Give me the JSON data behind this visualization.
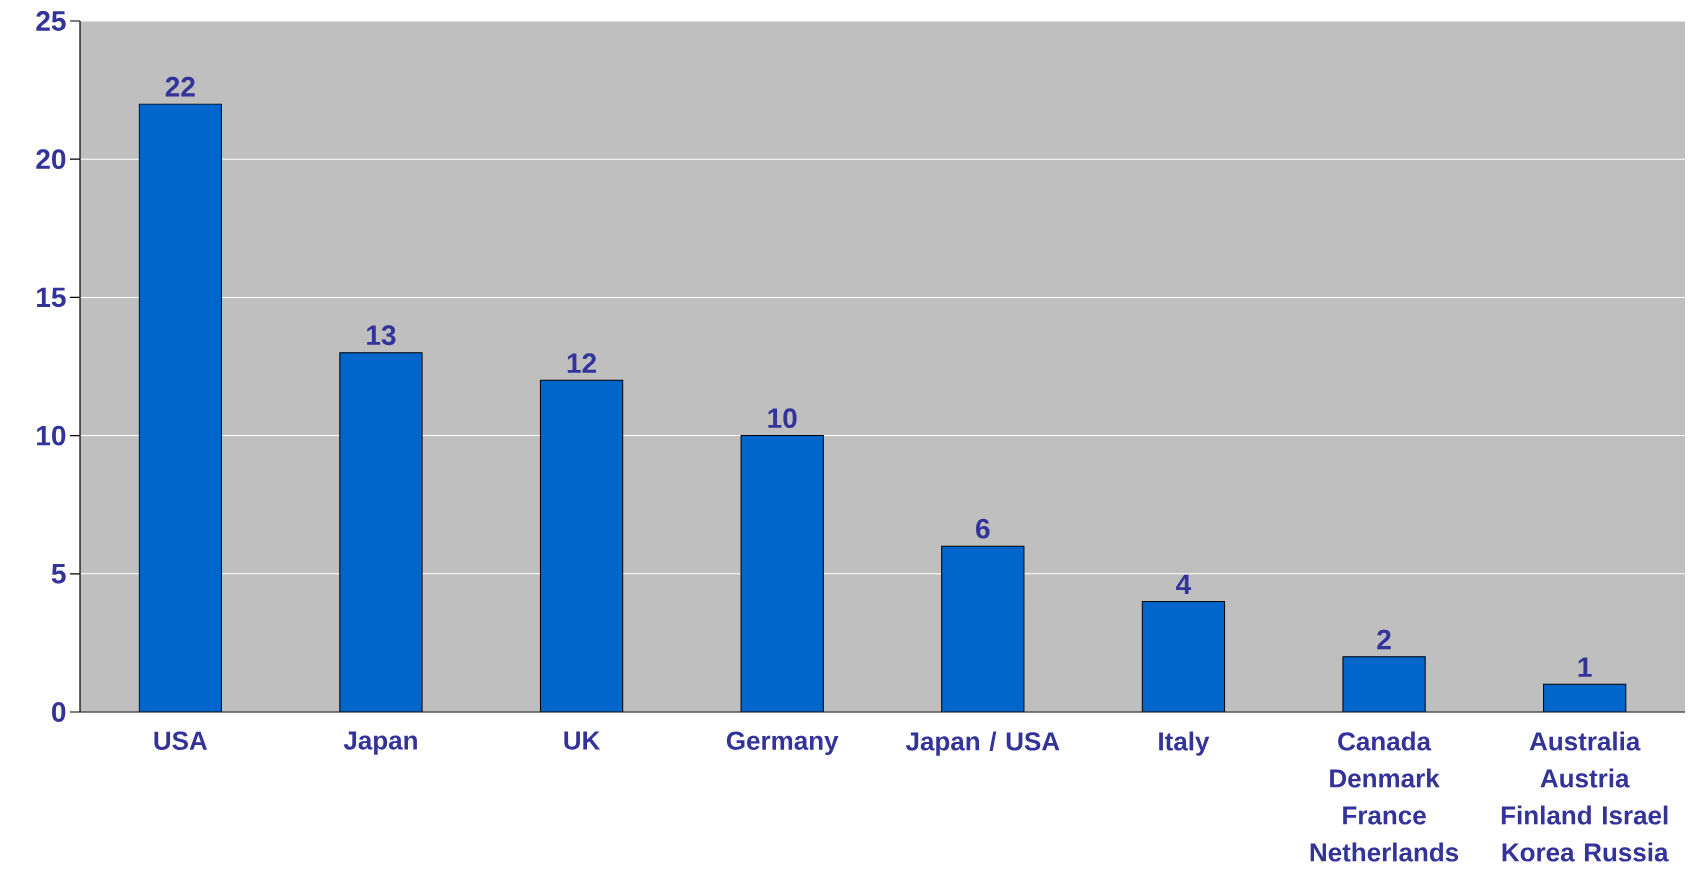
{
  "chart_data": {
    "type": "bar",
    "categories": [
      "USA",
      "Japan",
      "UK",
      "Germany",
      "Japan / USA",
      "Italy",
      "Canada Denmark France Netherlands",
      "Australia Austria Finland Israel Korea Russia"
    ],
    "values": [
      22,
      13,
      12,
      10,
      6,
      4,
      2,
      1
    ],
    "color": "#0066cc",
    "ylim": [
      0,
      25
    ],
    "yticks": [
      0,
      5,
      10,
      15,
      20,
      25
    ],
    "grid": "y",
    "data_labels": true
  }
}
